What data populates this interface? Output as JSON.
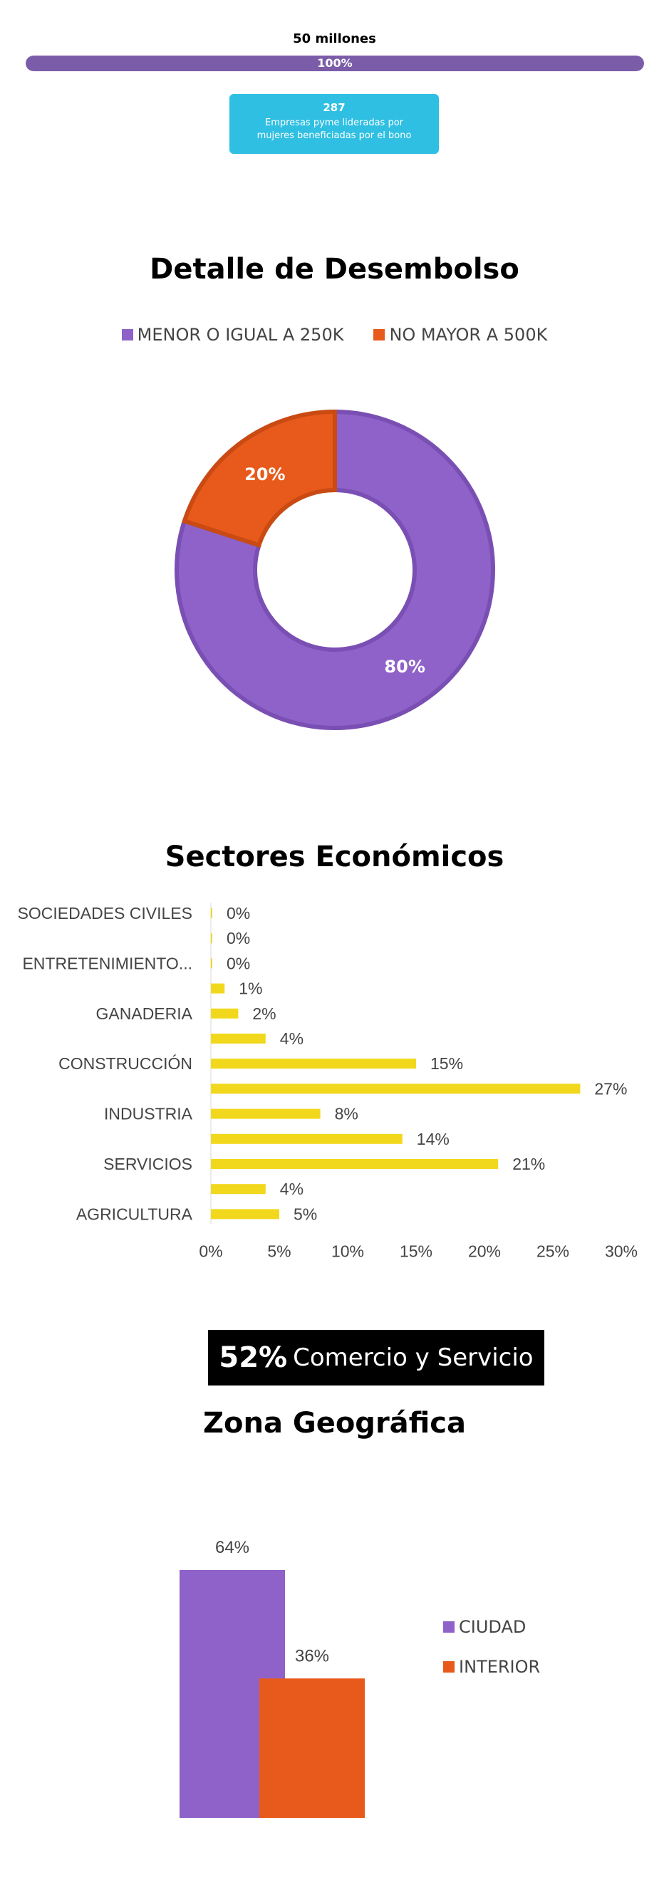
{
  "header": {
    "budget_label": "50 millones",
    "progress_fraction": 1.0,
    "progress_text": "100%"
  },
  "stat_card": {
    "number": "287",
    "caption": "Empresas pyme lideradas por mujeres beneficiadas por el bono"
  },
  "colors": {
    "purple": "#8e62c9",
    "orange": "#e85a1b",
    "yellow": "#f2d81c",
    "progress": "#7b5ca8",
    "card": "#2fbfe2"
  },
  "highlight": {
    "percent": "52%",
    "text": "Comercio y Servicio"
  },
  "chart_data": [
    {
      "type": "pie",
      "donut": true,
      "title": "Detalle de Desembolso",
      "legend_position": "top",
      "labels": [
        "MENOR O IGUAL A 250K",
        "NO MAYOR A 500K"
      ],
      "values": [
        80,
        20
      ],
      "data_labels": [
        "80%",
        "20%"
      ]
    },
    {
      "type": "bar",
      "orientation": "horizontal",
      "title": "Sectores Económicos",
      "categories": [
        "SOCIEDADES CIVILES",
        "",
        "ENTRETENIMIENTO...",
        "",
        "GANADERIA",
        "",
        "CONSTRUCCIÓN",
        "",
        "INDUSTRIA",
        "",
        "SERVICIOS",
        "",
        "AGRICULTURA"
      ],
      "values": [
        0,
        0,
        0,
        1,
        2,
        4,
        15,
        27,
        8,
        14,
        21,
        4,
        5
      ],
      "data_labels": [
        "0%",
        "0%",
        "0%",
        "1%",
        "2%",
        "4%",
        "15%",
        "27%",
        "8%",
        "14%",
        "21%",
        "4%",
        "5%"
      ],
      "xlim": [
        0,
        30
      ],
      "xticks": [
        "0%",
        "5%",
        "10%",
        "15%",
        "20%",
        "25%",
        "30%"
      ]
    },
    {
      "type": "bar",
      "title": "Zona Geográfica",
      "legend_position": "right",
      "series": [
        {
          "name": "CIUDAD",
          "values": [
            64
          ],
          "label": "64%"
        },
        {
          "name": "INTERIOR",
          "values": [
            36
          ],
          "label": "36%"
        }
      ],
      "ylim": [
        0,
        64
      ]
    }
  ]
}
